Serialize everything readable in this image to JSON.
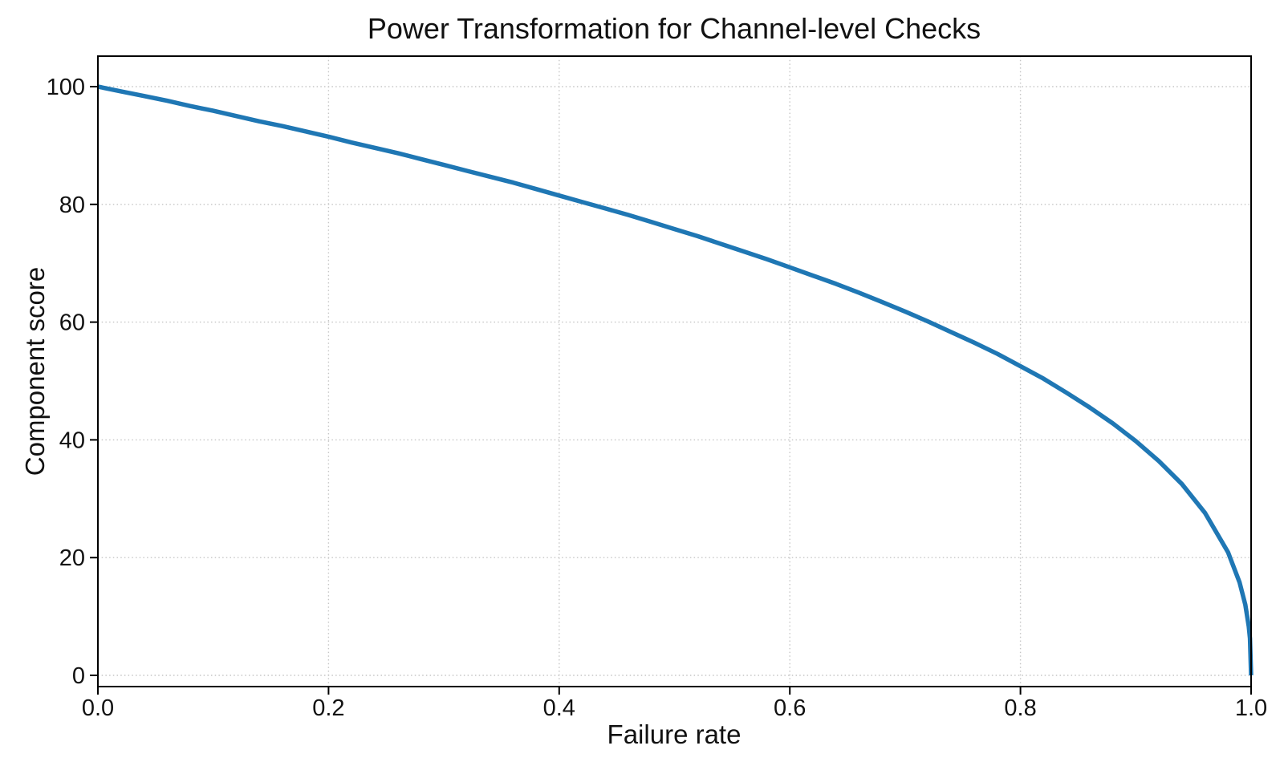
{
  "chart_data": {
    "type": "line",
    "title": "Power Transformation for Channel-level Checks",
    "xlabel": "Failure rate",
    "ylabel": "Component score",
    "xlim": [
      0.0,
      1.0
    ],
    "ylim": [
      -2,
      105.5
    ],
    "x_tick_labels": [
      "0.0",
      "0.2",
      "0.4",
      "0.6",
      "0.8",
      "1.0"
    ],
    "x_tick_values": [
      0.0,
      0.2,
      0.4,
      0.6,
      0.8,
      1.0
    ],
    "y_tick_labels": [
      "0",
      "20",
      "40",
      "60",
      "80",
      "100"
    ],
    "y_tick_values": [
      0,
      20,
      40,
      60,
      80,
      100
    ],
    "grid": true,
    "grid_style": "dotted",
    "legend": false,
    "colors": {
      "line": "#1f77b4",
      "grid": "#c6c6c6",
      "spine": "#000000",
      "text": "#111111",
      "background": "#ffffff"
    },
    "series": [
      {
        "color": "#1f77b4",
        "x": [
          0,
          0.02,
          0.04,
          0.06,
          0.08,
          0.1,
          0.12,
          0.14,
          0.16,
          0.18,
          0.2,
          0.22,
          0.24,
          0.26,
          0.28,
          0.3,
          0.32,
          0.34,
          0.36,
          0.38,
          0.4,
          0.42,
          0.44,
          0.46,
          0.48,
          0.5,
          0.52,
          0.54,
          0.56,
          0.58,
          0.6,
          0.62,
          0.64,
          0.66,
          0.68,
          0.7,
          0.72,
          0.74,
          0.76,
          0.78,
          0.8,
          0.82,
          0.84,
          0.86,
          0.88,
          0.9,
          0.92,
          0.94,
          0.96,
          0.98,
          0.99,
          0.995,
          0.998,
          0.999,
          1.0
        ],
        "y": [
          100,
          99.2,
          98.4,
          97.6,
          96.7,
          95.9,
          95.0,
          94.1,
          93.3,
          92.4,
          91.5,
          90.5,
          89.6,
          88.7,
          87.7,
          86.7,
          85.7,
          84.7,
          83.7,
          82.6,
          81.5,
          80.4,
          79.3,
          78.2,
          77.0,
          75.8,
          74.6,
          73.3,
          72.0,
          70.7,
          69.3,
          67.9,
          66.5,
          65.0,
          63.4,
          61.8,
          60.1,
          58.3,
          56.5,
          54.6,
          52.5,
          50.4,
          48.0,
          45.5,
          42.8,
          39.8,
          36.4,
          32.5,
          27.6,
          20.9,
          15.8,
          12.0,
          8.3,
          6.3,
          0
        ]
      }
    ]
  }
}
